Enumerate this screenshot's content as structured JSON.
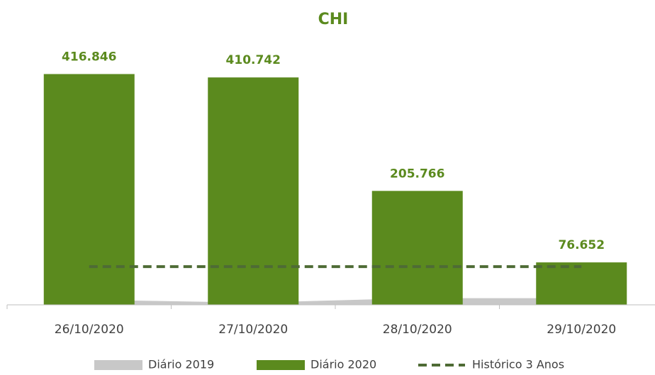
{
  "chart_data": {
    "type": "bar",
    "title": "CHI",
    "categories": [
      "26/10/2020",
      "27/10/2020",
      "28/10/2020",
      "29/10/2020"
    ],
    "series": [
      {
        "name": "Diário 2019",
        "type": "area",
        "color": "#c8c8c8",
        "values": [
          9000,
          4000,
          12000,
          12000
        ]
      },
      {
        "name": "Diário 2020",
        "type": "bar",
        "color": "#5b8a1e",
        "values": [
          416846,
          410742,
          205766,
          76652
        ],
        "value_labels": [
          "416.846",
          "410.742",
          "205.766",
          "76.652"
        ]
      },
      {
        "name": "Histórico 3 Anos",
        "type": "dashed-line",
        "color": "#4e6b35",
        "values": [
          69000,
          69000,
          69000,
          69000
        ]
      }
    ],
    "ylim": [
      0,
      420000
    ],
    "legend": "bottom"
  }
}
